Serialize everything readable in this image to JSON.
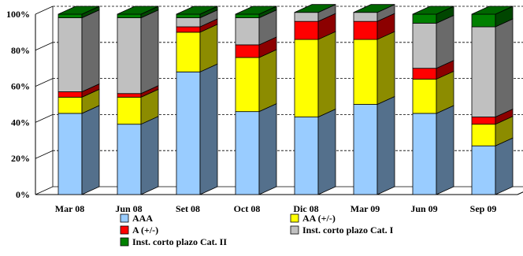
{
  "chart_data": {
    "type": "bar",
    "stacked": true,
    "percent": true,
    "three_d": true,
    "title": "",
    "xlabel": "",
    "ylabel": "",
    "ylim": [
      0,
      100
    ],
    "yticks": [
      "0%",
      "20%",
      "40%",
      "60%",
      "80%",
      "100%"
    ],
    "grid": true,
    "legend_position": "bottom",
    "categories": [
      "Mar 08",
      "Jun 08",
      "Set 08",
      "Oct 08",
      "Dic 08",
      "Mar 09",
      "Jun 09",
      "Sep 09"
    ],
    "series": [
      {
        "name": "AAA",
        "color": "#99ccff",
        "values": [
          45,
          39,
          68,
          46,
          43,
          50,
          45,
          27
        ]
      },
      {
        "name": "AA (+/-)",
        "color": "#ffff00",
        "values": [
          9,
          15,
          22,
          30,
          43,
          36,
          19,
          12
        ]
      },
      {
        "name": "A (+/-)",
        "color": "#ff0000",
        "values": [
          3,
          2,
          3,
          7,
          10,
          10,
          6,
          4
        ]
      },
      {
        "name": "Inst. corto plazo Cat. I",
        "color": "#c0c0c0",
        "values": [
          41,
          42,
          5,
          15,
          5,
          5,
          25,
          50
        ]
      },
      {
        "name": "Inst. corto plazo Cat. II",
        "color": "#008000",
        "values": [
          2,
          2,
          2,
          2,
          0,
          0,
          5,
          7
        ]
      }
    ]
  }
}
